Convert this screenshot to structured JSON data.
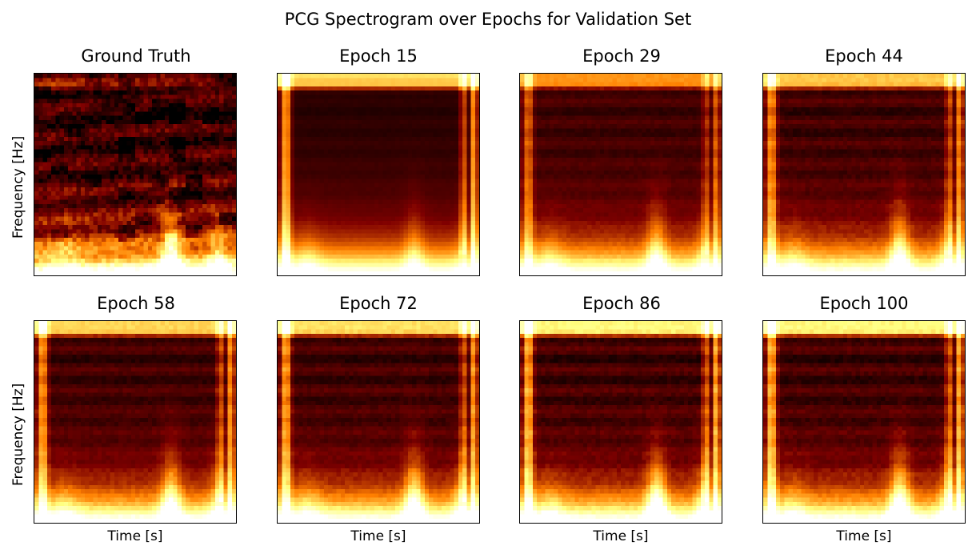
{
  "chart_data": {
    "type": "heatmap",
    "title": "PCG Spectrogram over Epochs for Validation Set",
    "colormap": "afmhot",
    "xlabel": "Time [s]",
    "ylabel": "Frequency [Hz]",
    "grid": false,
    "ticks": false,
    "panels": [
      {
        "title": "Ground Truth"
      },
      {
        "title": "Epoch 15"
      },
      {
        "title": "Epoch 29"
      },
      {
        "title": "Epoch 44"
      },
      {
        "title": "Epoch 58"
      },
      {
        "title": "Epoch 72"
      },
      {
        "title": "Epoch 86"
      },
      {
        "title": "Epoch 100"
      }
    ]
  }
}
